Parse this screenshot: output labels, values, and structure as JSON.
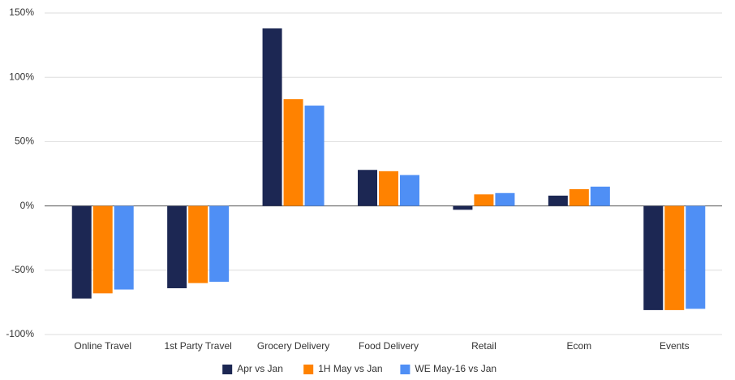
{
  "chart_data": {
    "type": "bar",
    "categories": [
      "Online Travel",
      "1st Party Travel",
      "Grocery Delivery",
      "Food Delivery",
      "Retail",
      "Ecom",
      "Events"
    ],
    "series": [
      {
        "name": "Apr vs Jan",
        "color": "#1c2753",
        "values": [
          -72,
          -64,
          138,
          28,
          -3,
          8,
          -81
        ]
      },
      {
        "name": "1H May vs Jan",
        "color": "#ff8200",
        "values": [
          -68,
          -60,
          83,
          27,
          9,
          13,
          -81
        ]
      },
      {
        "name": "WE May-16 vs Jan",
        "color": "#4f8ff5",
        "values": [
          -65,
          -59,
          78,
          24,
          10,
          15,
          -80
        ]
      }
    ],
    "ylim": [
      -100,
      150
    ],
    "yticks": [
      {
        "value": -100,
        "label": "-100%"
      },
      {
        "value": -50,
        "label": "-50%"
      },
      {
        "value": 0,
        "label": "0%"
      },
      {
        "value": 50,
        "label": "50%"
      },
      {
        "value": 100,
        "label": "100%"
      },
      {
        "value": 150,
        "label": "150%"
      }
    ],
    "grid": true,
    "legend": "bottom"
  }
}
